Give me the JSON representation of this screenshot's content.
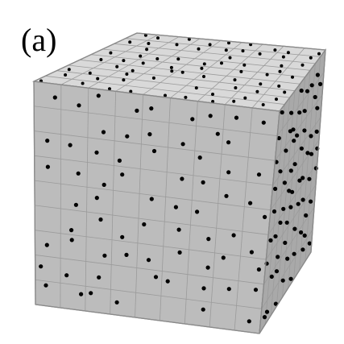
{
  "figure": {
    "panel_label": "(a)",
    "cube": {
      "grid_divisions": 9,
      "face_colors": {
        "top": "#d9d9d9",
        "front": "#bcbcbc",
        "right": "#a9a9a9",
        "edge": "#8a8a8a",
        "grid_line": "#9b9b9b"
      },
      "dot_color": "#000000"
    }
  }
}
